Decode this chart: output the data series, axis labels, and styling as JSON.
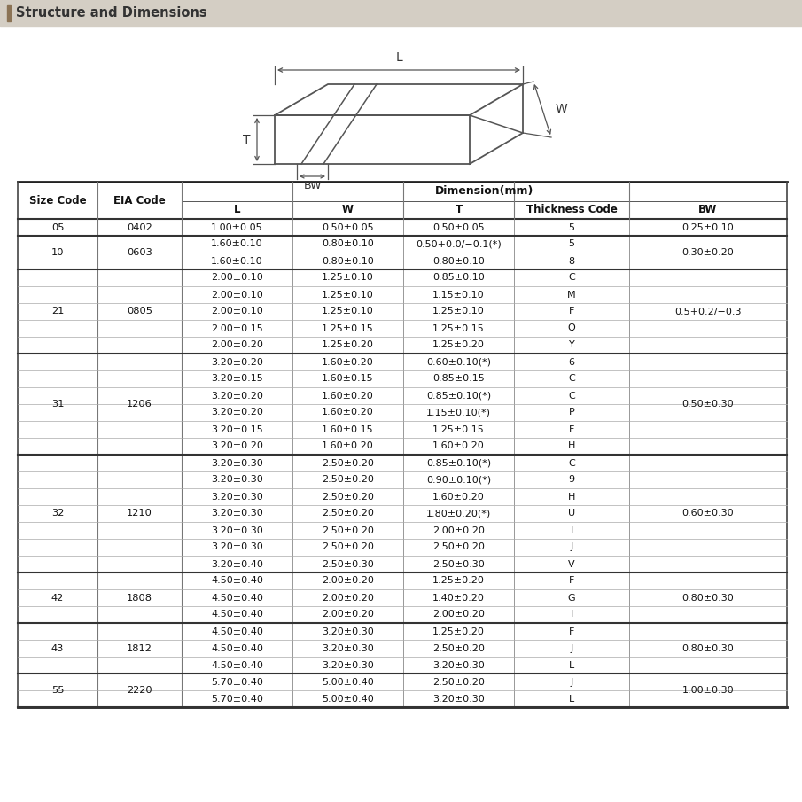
{
  "title": "Structure and Dimensions",
  "title_bar_color": "#d4cec4",
  "title_accent_color": "#8B7355",
  "bg_color": "#ffffff",
  "col_headers": [
    "Size Code",
    "EIA Code",
    "L",
    "W",
    "T",
    "Thickness Code",
    "BW"
  ],
  "dimension_header": "Dimension(mm)",
  "data_rows": [
    [
      "1.00±0.05",
      "0.50±0.05",
      "0.50±0.05",
      "5"
    ],
    [
      "1.60±0.10",
      "0.80±0.10",
      "0.50+0.0/−0.1(*)",
      "5"
    ],
    [
      "1.60±0.10",
      "0.80±0.10",
      "0.80±0.10",
      "8"
    ],
    [
      "2.00±0.10",
      "1.25±0.10",
      "0.85±0.10",
      "C"
    ],
    [
      "2.00±0.10",
      "1.25±0.10",
      "1.15±0.10",
      "M"
    ],
    [
      "2.00±0.10",
      "1.25±0.10",
      "1.25±0.10",
      "F"
    ],
    [
      "2.00±0.15",
      "1.25±0.15",
      "1.25±0.15",
      "Q"
    ],
    [
      "2.00±0.20",
      "1.25±0.20",
      "1.25±0.20",
      "Y"
    ],
    [
      "3.20±0.20",
      "1.60±0.20",
      "0.60±0.10(*)",
      "6"
    ],
    [
      "3.20±0.15",
      "1.60±0.15",
      "0.85±0.15",
      "C"
    ],
    [
      "3.20±0.20",
      "1.60±0.20",
      "0.85±0.10(*)",
      "C"
    ],
    [
      "3.20±0.20",
      "1.60±0.20",
      "1.15±0.10(*)",
      "P"
    ],
    [
      "3.20±0.15",
      "1.60±0.15",
      "1.25±0.15",
      "F"
    ],
    [
      "3.20±0.20",
      "1.60±0.20",
      "1.60±0.20",
      "H"
    ],
    [
      "3.20±0.30",
      "2.50±0.20",
      "0.85±0.10(*)",
      "C"
    ],
    [
      "3.20±0.30",
      "2.50±0.20",
      "0.90±0.10(*)",
      "9"
    ],
    [
      "3.20±0.30",
      "2.50±0.20",
      "1.60±0.20",
      "H"
    ],
    [
      "3.20±0.30",
      "2.50±0.20",
      "1.80±0.20(*)",
      "U"
    ],
    [
      "3.20±0.30",
      "2.50±0.20",
      "2.00±0.20",
      "I"
    ],
    [
      "3.20±0.30",
      "2.50±0.20",
      "2.50±0.20",
      "J"
    ],
    [
      "3.20±0.40",
      "2.50±0.30",
      "2.50±0.30",
      "V"
    ],
    [
      "4.50±0.40",
      "2.00±0.20",
      "1.25±0.20",
      "F"
    ],
    [
      "4.50±0.40",
      "2.00±0.20",
      "1.40±0.20",
      "G"
    ],
    [
      "4.50±0.40",
      "2.00±0.20",
      "2.00±0.20",
      "I"
    ],
    [
      "4.50±0.40",
      "3.20±0.30",
      "1.25±0.20",
      "F"
    ],
    [
      "4.50±0.40",
      "3.20±0.30",
      "2.50±0.20",
      "J"
    ],
    [
      "4.50±0.40",
      "3.20±0.30",
      "3.20±0.30",
      "L"
    ],
    [
      "5.70±0.40",
      "5.00±0.40",
      "2.50±0.20",
      "J"
    ],
    [
      "5.70±0.40",
      "5.00±0.40",
      "3.20±0.30",
      "L"
    ]
  ],
  "groups": [
    {
      "size": "05",
      "eia": "0402",
      "rows": [
        0
      ],
      "bw": "0.25±0.10"
    },
    {
      "size": "10",
      "eia": "0603",
      "rows": [
        1,
        2
      ],
      "bw": "0.30±0.20"
    },
    {
      "size": "21",
      "eia": "0805",
      "rows": [
        3,
        4,
        5,
        6,
        7
      ],
      "bw": "0.5+0.2/−0.3"
    },
    {
      "size": "31",
      "eia": "1206",
      "rows": [
        8,
        9,
        10,
        11,
        12,
        13
      ],
      "bw": "0.50±0.30"
    },
    {
      "size": "32",
      "eia": "1210",
      "rows": [
        14,
        15,
        16,
        17,
        18,
        19,
        20
      ],
      "bw": "0.60±0.30"
    },
    {
      "size": "42",
      "eia": "1808",
      "rows": [
        21,
        22,
        23
      ],
      "bw": "0.80±0.30"
    },
    {
      "size": "43",
      "eia": "1812",
      "rows": [
        24,
        25,
        26
      ],
      "bw": "0.80±0.30"
    },
    {
      "size": "55",
      "eia": "2220",
      "rows": [
        27,
        28
      ],
      "bw": "1.00±0.30"
    }
  ]
}
